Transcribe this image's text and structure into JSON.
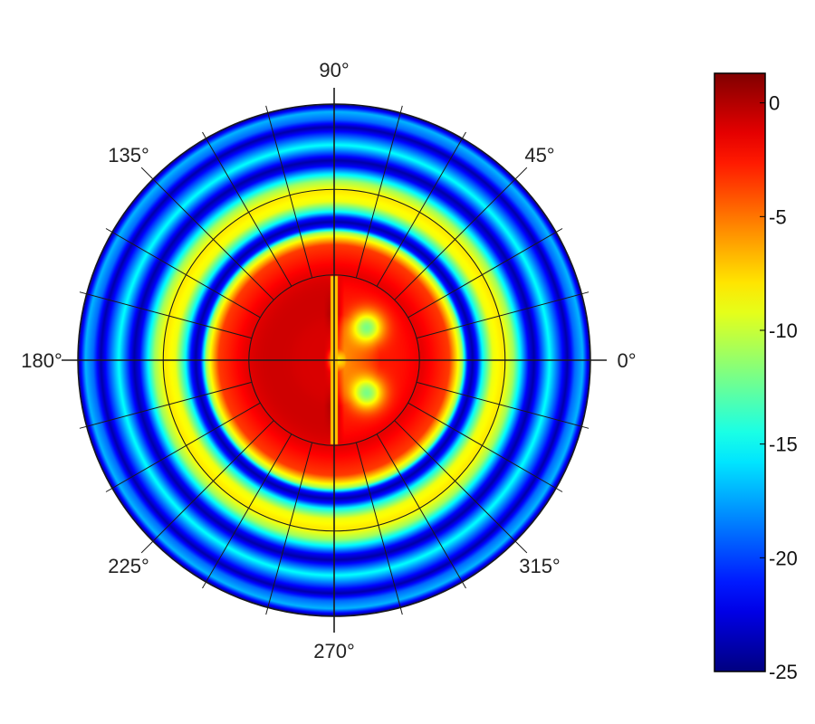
{
  "chart_data": {
    "type": "heatmap",
    "subtype": "polar",
    "angle_ticks": [
      {
        "angle": 0,
        "label": "0°"
      },
      {
        "angle": 45,
        "label": "45°"
      },
      {
        "angle": 90,
        "label": "90°"
      },
      {
        "angle": 135,
        "label": "135°"
      },
      {
        "angle": 180,
        "label": "180°"
      },
      {
        "angle": 225,
        "label": "225°"
      },
      {
        "angle": 270,
        "label": "270°"
      },
      {
        "angle": 315,
        "label": "315°"
      }
    ],
    "radial_grid_fractions": [
      0.333,
      0.667,
      1.0
    ],
    "angular_grid_step_deg": 15,
    "colorbar": {
      "colormap": "jet",
      "range": [
        -25,
        1.3
      ],
      "ticks": [
        {
          "value": 0,
          "label": "0"
        },
        {
          "value": -5,
          "label": "-5"
        },
        {
          "value": -10,
          "label": "-10"
        },
        {
          "value": -15,
          "label": "-15"
        },
        {
          "value": -20,
          "label": "-20"
        },
        {
          "value": -25,
          "label": "-25"
        }
      ]
    },
    "radial_profile": [
      {
        "r": 0.0,
        "v": -9
      },
      {
        "r": 0.05,
        "v": -2
      },
      {
        "r": 0.18,
        "v": 0.5
      },
      {
        "r": 0.35,
        "v": -1.5
      },
      {
        "r": 0.45,
        "v": -3.5
      },
      {
        "r": 0.5,
        "v": -11
      },
      {
        "r": 0.52,
        "v": -21
      },
      {
        "r": 0.54,
        "v": -24
      },
      {
        "r": 0.56,
        "v": -21
      },
      {
        "r": 0.58,
        "v": -15
      },
      {
        "r": 0.62,
        "v": -9
      },
      {
        "r": 0.66,
        "v": -8
      },
      {
        "r": 0.7,
        "v": -11
      },
      {
        "r": 0.73,
        "v": -16
      },
      {
        "r": 0.76,
        "v": -22
      },
      {
        "r": 0.78,
        "v": -24
      },
      {
        "r": 0.8,
        "v": -21
      },
      {
        "r": 0.84,
        "v": -15
      },
      {
        "r": 0.88,
        "v": -20
      },
      {
        "r": 0.91,
        "v": -24
      },
      {
        "r": 0.94,
        "v": -19
      },
      {
        "r": 0.97,
        "v": -17
      },
      {
        "r": 1.0,
        "v": -25
      }
    ],
    "features": [
      {
        "type": "left-half-core",
        "value": -1
      },
      {
        "type": "spot",
        "angle": 45,
        "r": 0.18,
        "value": -12
      },
      {
        "type": "spot",
        "angle": 315,
        "r": 0.18,
        "value": -12
      }
    ]
  }
}
